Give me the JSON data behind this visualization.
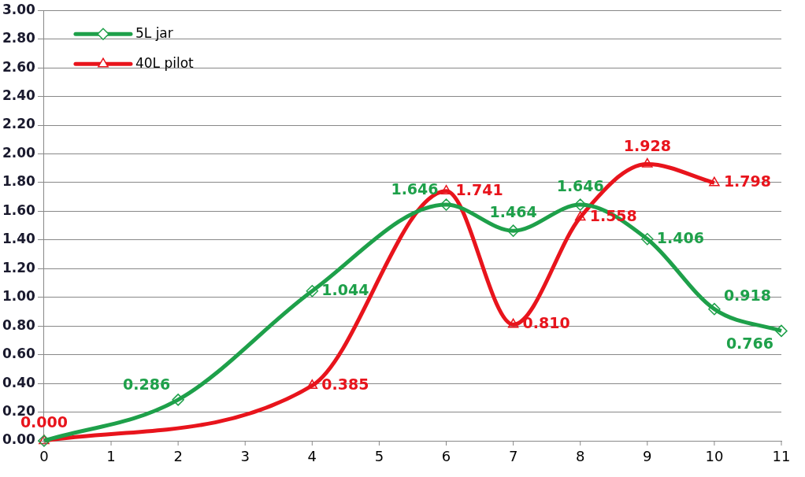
{
  "chart_data": {
    "type": "line",
    "xlim": [
      0,
      11
    ],
    "xticks": [
      0,
      1,
      2,
      3,
      4,
      5,
      6,
      7,
      8,
      9,
      10,
      11
    ],
    "ylim": [
      0,
      3
    ],
    "yticks": [
      {
        "value": 0,
        "label": "0.00"
      },
      {
        "value": 0.2,
        "label": "0.20"
      },
      {
        "value": 0.4,
        "label": "0.40"
      },
      {
        "value": 0.6,
        "label": "0.60"
      },
      {
        "value": 0.8,
        "label": "0.80"
      },
      {
        "value": 1,
        "label": "1.00"
      },
      {
        "value": 1.2,
        "label": "1.20"
      },
      {
        "value": 1.4,
        "label": "1.40"
      },
      {
        "value": 1.6,
        "label": "1.60"
      },
      {
        "value": 1.8,
        "label": "1.80"
      },
      {
        "value": 2,
        "label": "2.00"
      },
      {
        "value": 2.2,
        "label": "2.20"
      },
      {
        "value": 2.4,
        "label": "2.40"
      },
      {
        "value": 2.6,
        "label": "2.60"
      },
      {
        "value": 2.8,
        "label": "2.80"
      },
      {
        "value": 3,
        "label": "3.00"
      }
    ],
    "grid": "y",
    "legend": "top left",
    "series": [
      {
        "name": "5L jar",
        "color": "#1ea04a",
        "marker": "diamond",
        "x": [
          0,
          2,
          4,
          6,
          7,
          8,
          9,
          10,
          11
        ],
        "values": [
          0,
          0.286,
          1.044,
          1.646,
          1.464,
          1.646,
          1.406,
          0.918,
          0.766
        ],
        "value_labels": [
          null,
          "0.286",
          "1.044",
          "1.646",
          "1.464",
          "1.646",
          "1.406",
          "0.918",
          "0.766"
        ]
      },
      {
        "name": "40L pilot",
        "color": "#e8141c",
        "marker": "triangle",
        "x": [
          0,
          4,
          6,
          7,
          8,
          9,
          10
        ],
        "values": [
          0,
          0.385,
          1.741,
          0.81,
          1.558,
          1.928,
          1.798
        ],
        "value_labels": [
          "0.000",
          "0.385",
          "1.741",
          "0.810",
          "1.558",
          "1.928",
          "1.798"
        ]
      }
    ]
  }
}
